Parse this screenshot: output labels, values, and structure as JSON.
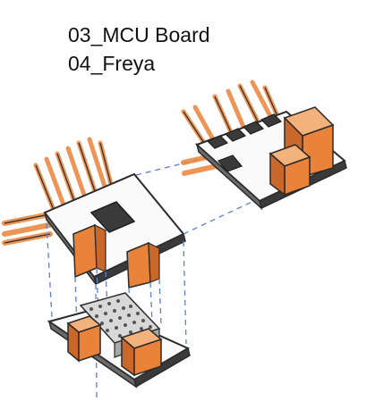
{
  "labels": [
    "03_MCU Board",
    "04_Freya"
  ],
  "colors": {
    "ink": "#2b2b2b",
    "orange": "#e9833a",
    "orange_light": "#f3b27c",
    "orange_dark": "#c9682a",
    "chip": "#3a3a3a",
    "connector": "#5b7fd1",
    "board": "#fafafa"
  }
}
